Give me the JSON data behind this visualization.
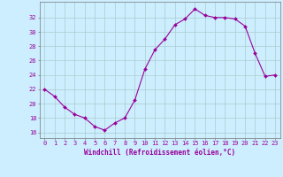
{
  "x": [
    0,
    1,
    2,
    3,
    4,
    5,
    6,
    7,
    8,
    9,
    10,
    11,
    12,
    13,
    14,
    15,
    16,
    17,
    18,
    19,
    20,
    21,
    22,
    23
  ],
  "y": [
    22.0,
    21.0,
    19.5,
    18.5,
    18.0,
    16.8,
    16.3,
    17.3,
    18.0,
    20.5,
    24.8,
    27.5,
    29.0,
    31.0,
    31.8,
    33.2,
    32.3,
    32.0,
    32.0,
    31.8,
    30.8,
    27.0,
    23.8,
    24.0
  ],
  "line_color": "#990099",
  "marker_color": "#990099",
  "bg_color": "#cceeff",
  "grid_color": "#aacccc",
  "xlabel": "Windchill (Refroidissement éolien,°C)",
  "yticks": [
    16,
    18,
    20,
    22,
    24,
    26,
    28,
    30,
    32
  ],
  "xticks": [
    0,
    1,
    2,
    3,
    4,
    5,
    6,
    7,
    8,
    9,
    10,
    11,
    12,
    13,
    14,
    15,
    16,
    17,
    18,
    19,
    20,
    21,
    22,
    23
  ],
  "ylim": [
    15.2,
    34.2
  ],
  "xlim": [
    -0.5,
    23.5
  ],
  "label_color": "#990099",
  "axis_color": "#777777",
  "tick_fontsize": 5.0,
  "xlabel_fontsize": 5.5
}
